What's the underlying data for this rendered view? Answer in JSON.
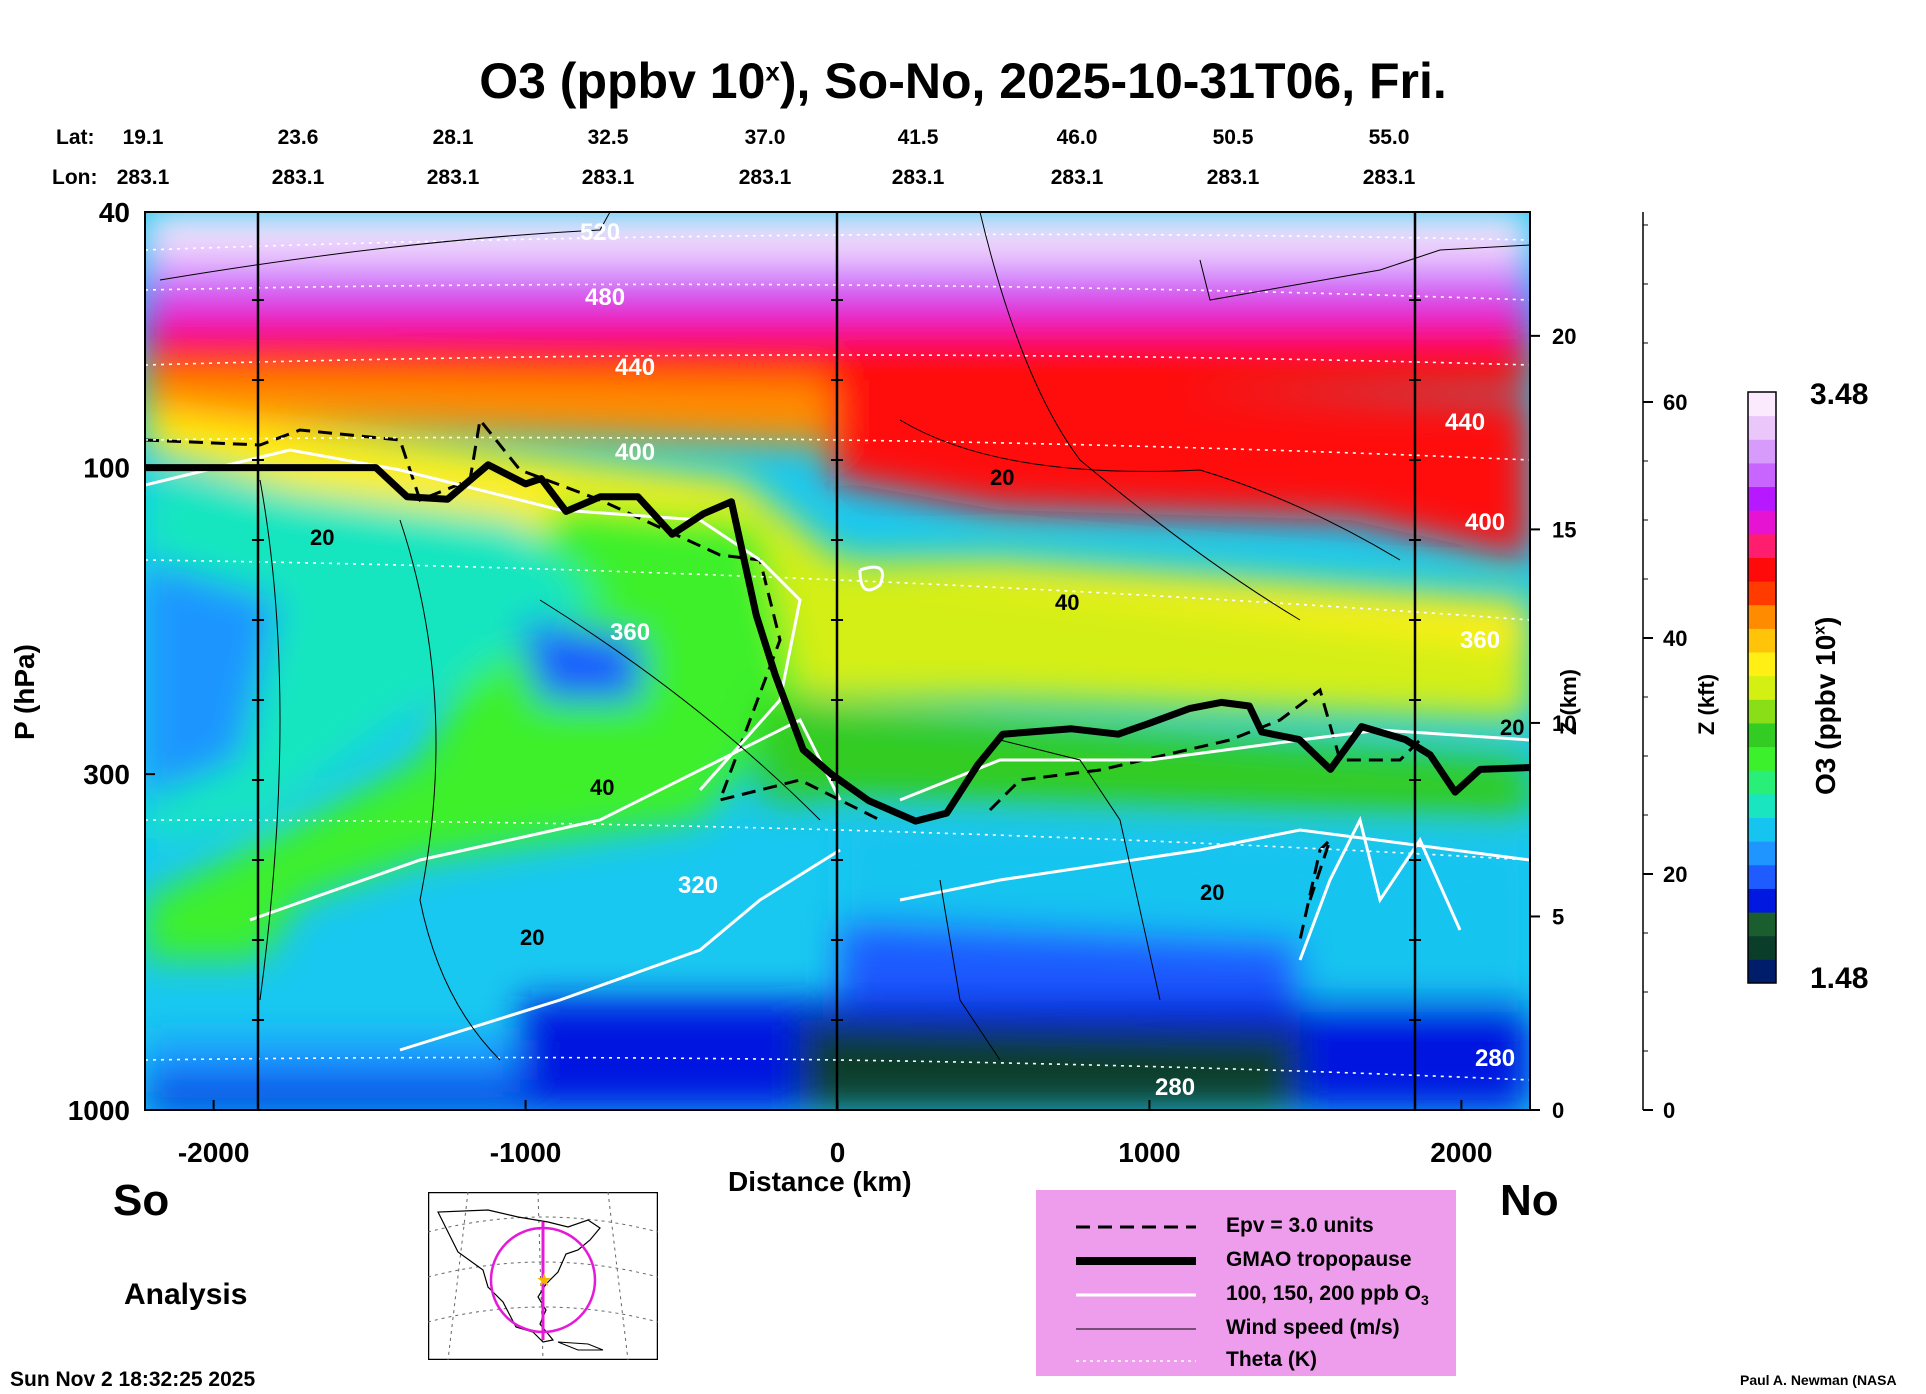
{
  "chart_data": {
    "type": "heatmap",
    "title": "O3 (ppbv 10",
    "title_sup": "x",
    "title_rest": "), So-No, 2025-10-31T06, Fri.",
    "lat_label": "Lat:",
    "lon_label": "Lon:",
    "lats": [
      "19.1",
      "23.6",
      "28.1",
      "32.5",
      "37.0",
      "41.5",
      "46.0",
      "50.5",
      "55.0"
    ],
    "lons": [
      "283.1",
      "283.1",
      "283.1",
      "283.1",
      "283.1",
      "283.1",
      "283.1",
      "283.1",
      "283.1"
    ],
    "xlabel": "Distance (km)",
    "ylabel": "P (hPa)",
    "xlim": [
      -2220,
      2220
    ],
    "ylim": [
      1000,
      40
    ],
    "yscale": "log",
    "x_ticks": [
      -2000,
      -1000,
      0,
      1000,
      2000
    ],
    "y_ticks": [
      1000,
      300,
      100,
      40
    ],
    "z_km_label": "Z (km)",
    "z_km_ticks": [
      0,
      5,
      10,
      15,
      20
    ],
    "z_kft_label": "Z (kft)",
    "z_kft_ticks": [
      0,
      20,
      40,
      60
    ],
    "colorbar": {
      "label": "O3 (ppbv 10",
      "label_sup": "x",
      "label_end": ")",
      "min_label": "1.48",
      "max_label": "3.48",
      "colors": [
        "#001d6b",
        "#0a3d2a",
        "#1a5e30",
        "#0018e0",
        "#1f5cff",
        "#1f95ff",
        "#16c4f0",
        "#19e6c0",
        "#29ee77",
        "#3cf02b",
        "#33cc22",
        "#8ade18",
        "#d4ef12",
        "#ffef14",
        "#ffc40a",
        "#ff8c00",
        "#ff3b00",
        "#ff0a0a",
        "#ff1e6e",
        "#e614d2",
        "#b619ff",
        "#c865ff",
        "#d79bfc",
        "#eac6fb",
        "#fbe9fd"
      ]
    },
    "tropopause": [
      [
        -2220,
        100
      ],
      [
        -1480,
        100
      ],
      [
        -1380,
        111
      ],
      [
        -1250,
        112
      ],
      [
        -1120,
        99
      ],
      [
        -1000,
        106
      ],
      [
        -950,
        104
      ],
      [
        -870,
        117
      ],
      [
        -760,
        111
      ],
      [
        -640,
        111
      ],
      [
        -530,
        127
      ],
      [
        -430,
        118
      ],
      [
        -340,
        113
      ],
      [
        -260,
        170
      ],
      [
        -200,
        210
      ],
      [
        -110,
        275
      ],
      [
        -20,
        300
      ],
      [
        100,
        330
      ],
      [
        250,
        355
      ],
      [
        350,
        345
      ],
      [
        450,
        290
      ],
      [
        530,
        260
      ],
      [
        750,
        255
      ],
      [
        900,
        260
      ],
      [
        1000,
        250
      ],
      [
        1130,
        237
      ],
      [
        1230,
        232
      ],
      [
        1320,
        235
      ],
      [
        1360,
        258
      ],
      [
        1480,
        265
      ],
      [
        1580,
        295
      ],
      [
        1680,
        253
      ],
      [
        1820,
        265
      ],
      [
        1900,
        280
      ],
      [
        1980,
        320
      ],
      [
        2060,
        295
      ],
      [
        2220,
        293
      ]
    ],
    "theta_labels": [
      "520",
      "480",
      "440",
      "400",
      "360",
      "320",
      "280"
    ],
    "wind_labels": [
      "20",
      "40",
      "20",
      "20",
      "40",
      "20",
      "20"
    ],
    "location_labels": [
      "So",
      "No"
    ],
    "analysis_label": "Analysis",
    "legend": [
      {
        "name": "Epv = 3.0 units",
        "style": "dashed"
      },
      {
        "name": "GMAO tropopause",
        "style": "thick"
      },
      {
        "name": "100, 150, 200 ppb O",
        "sub": "3",
        "style": "white"
      },
      {
        "name": "Wind speed (m/s)",
        "style": "thin"
      },
      {
        "name": "Theta (K)",
        "style": "dotted"
      }
    ],
    "timestamp": "Sun Nov  2 18:32:25 2025",
    "credit": "Paul A. Newman (NASA"
  }
}
